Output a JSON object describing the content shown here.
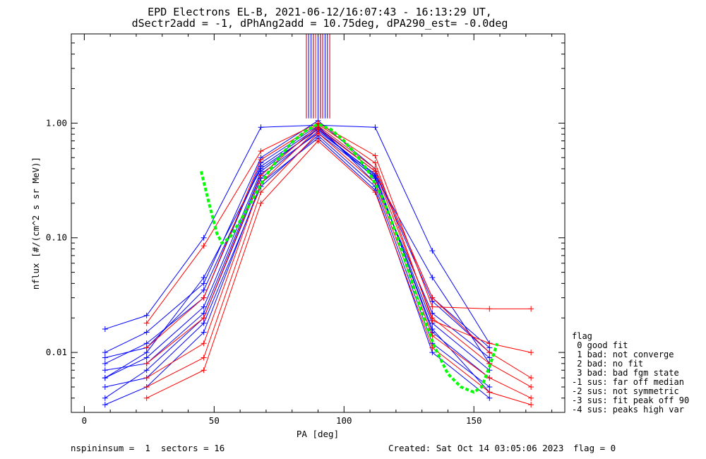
{
  "footer": {
    "left": "nspininsum =  1  sectors = 16",
    "created": "Created: Sat Oct 14 03:05:06 2023",
    "flag": "flag = 0"
  },
  "legend": {
    "title": "flag",
    "items": [
      " 0 good fit",
      " 1 bad: not converge",
      " 2 bad: no fit",
      " 3 bad: bad fgm state",
      "-1 sus: far off median",
      "-2 sus: not symmetric",
      "-3 sus: fit peak off 90",
      "-4 sus: peaks high var"
    ]
  },
  "colors": {
    "blue": "#0000ff",
    "red": "#ff0000",
    "fit": "#00ff00",
    "axis": "#000000"
  },
  "chart_data": {
    "type": "line",
    "title": "EPD Electrons EL-B, 2021-06-12/16:07:43 - 16:13:29 UT,",
    "subtitle": "dSectr2add = -1, dPhAng2add = 10.75deg, dPA290_est=  -0.0deg",
    "xlabel": "PA [deg]",
    "ylabel": "nflux [#/(cm^2 s sr MeV)]",
    "xlim": [
      -5,
      185
    ],
    "ylim": [
      0.003,
      6
    ],
    "yscale": "log",
    "x_ticks": [
      0,
      50,
      100,
      150
    ],
    "x_tick_labels": [
      "0",
      "50",
      "100",
      "150"
    ],
    "y_ticks": [
      0.01,
      0.1,
      1.0
    ],
    "y_tick_labels": [
      "0.01",
      "0.10",
      "1.00"
    ],
    "grid": false,
    "legend_position": "right",
    "series": [
      {
        "color": "blue",
        "x": [
          8,
          24,
          46,
          68,
          90,
          112,
          134,
          156
        ],
        "y": [
          0.006,
          0.009,
          0.025,
          0.38,
          0.9,
          0.33,
          0.018,
          0.007
        ]
      },
      {
        "color": "blue",
        "x": [
          8,
          24,
          46,
          68,
          90,
          112,
          134,
          156
        ],
        "y": [
          0.004,
          0.007,
          0.02,
          0.33,
          0.85,
          0.36,
          0.015,
          0.006
        ]
      },
      {
        "color": "blue",
        "x": [
          8,
          24,
          46,
          68,
          90,
          112,
          134,
          156
        ],
        "y": [
          0.008,
          0.012,
          0.03,
          0.45,
          0.95,
          0.3,
          0.022,
          0.009
        ]
      },
      {
        "color": "blue",
        "x": [
          8,
          24,
          46,
          68,
          90,
          112,
          134,
          156
        ],
        "y": [
          0.005,
          0.006,
          0.018,
          0.28,
          0.78,
          0.28,
          0.012,
          0.005
        ]
      },
      {
        "color": "blue",
        "x": [
          8,
          24,
          46,
          68,
          90,
          112,
          134,
          156
        ],
        "y": [
          0.01,
          0.015,
          0.04,
          0.5,
          1.05,
          0.4,
          0.03,
          0.011
        ]
      },
      {
        "color": "blue",
        "x": [
          8,
          24,
          46,
          68,
          90,
          112,
          134,
          156
        ],
        "y": [
          0.016,
          0.021,
          0.1,
          0.92,
          0.96,
          0.92,
          0.077,
          0.012
        ]
      },
      {
        "color": "blue",
        "x": [
          8,
          24,
          46,
          68,
          90,
          112,
          134,
          156
        ],
        "y": [
          0.007,
          0.008,
          0.022,
          0.36,
          0.82,
          0.34,
          0.016,
          0.0045
        ]
      },
      {
        "color": "blue",
        "x": [
          8,
          24,
          46,
          68,
          90,
          112,
          134,
          156
        ],
        "y": [
          0.0035,
          0.005,
          0.015,
          0.3,
          0.74,
          0.26,
          0.01,
          0.004
        ]
      },
      {
        "color": "blue",
        "x": [
          8,
          24,
          46,
          68,
          90,
          112,
          134,
          156
        ],
        "y": [
          0.009,
          0.011,
          0.035,
          0.42,
          0.92,
          0.38,
          0.028,
          0.01
        ]
      },
      {
        "color": "blue",
        "x": [
          8,
          24,
          46,
          68,
          90,
          112,
          134,
          156
        ],
        "y": [
          0.006,
          0.01,
          0.045,
          0.4,
          0.88,
          0.35,
          0.045,
          0.008
        ]
      },
      {
        "color": "red",
        "x": [
          24,
          46,
          68,
          90,
          112,
          134,
          156,
          172
        ],
        "y": [
          0.006,
          0.012,
          0.3,
          0.9,
          0.38,
          0.02,
          0.008,
          0.005
        ]
      },
      {
        "color": "red",
        "x": [
          24,
          46,
          68,
          90,
          112,
          134,
          156,
          172
        ],
        "y": [
          0.005,
          0.009,
          0.25,
          0.82,
          0.3,
          0.014,
          0.006,
          0.004
        ]
      },
      {
        "color": "red",
        "x": [
          24,
          46,
          68,
          90,
          112,
          134,
          156,
          172
        ],
        "y": [
          0.018,
          0.085,
          0.57,
          1.0,
          0.52,
          0.025,
          0.024,
          0.024
        ]
      },
      {
        "color": "red",
        "x": [
          24,
          46,
          68,
          90,
          112,
          134,
          156,
          172
        ],
        "y": [
          0.008,
          0.02,
          0.35,
          0.95,
          0.4,
          0.03,
          0.01,
          0.006
        ]
      },
      {
        "color": "red",
        "x": [
          24,
          46,
          68,
          90,
          112,
          134,
          156,
          172
        ],
        "y": [
          0.004,
          0.007,
          0.2,
          0.7,
          0.25,
          0.011,
          0.0045,
          0.0035
        ]
      },
      {
        "color": "red",
        "x": [
          24,
          46,
          68,
          90,
          112,
          134,
          156,
          172
        ],
        "y": [
          0.011,
          0.03,
          0.48,
          0.98,
          0.45,
          0.019,
          0.012,
          0.01
        ]
      }
    ],
    "fit_curve": {
      "color": "fit",
      "x": [
        45,
        48,
        51,
        53,
        56,
        60,
        65,
        70,
        75,
        80,
        85,
        90,
        95,
        100,
        105,
        110,
        115,
        120,
        125,
        130,
        135,
        140,
        145,
        150,
        153,
        156,
        159
      ],
      "y": [
        0.38,
        0.2,
        0.11,
        0.09,
        0.1,
        0.14,
        0.22,
        0.35,
        0.5,
        0.68,
        0.85,
        0.98,
        0.88,
        0.7,
        0.52,
        0.36,
        0.22,
        0.11,
        0.05,
        0.022,
        0.011,
        0.0065,
        0.005,
        0.0045,
        0.005,
        0.0075,
        0.012
      ]
    }
  }
}
